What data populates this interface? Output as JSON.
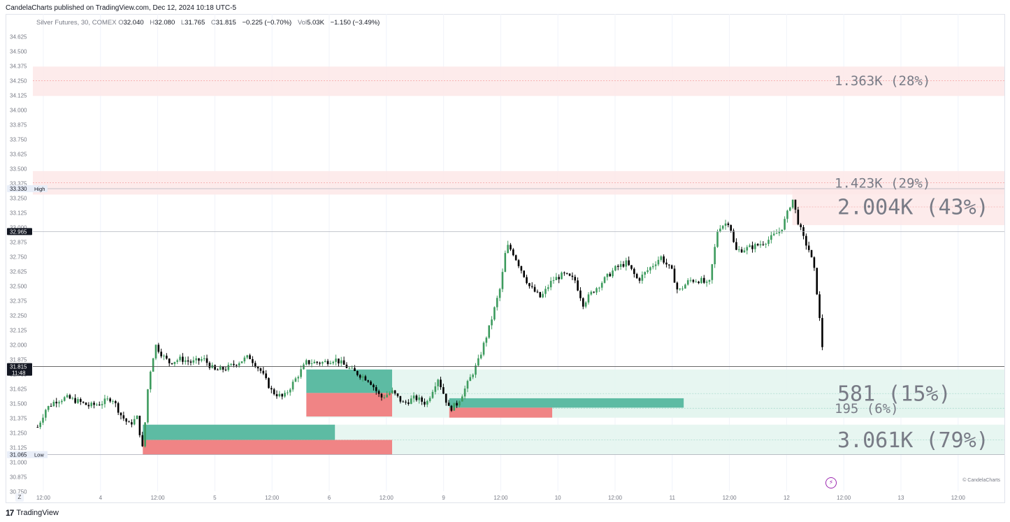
{
  "header": {
    "published_text": "CandelaCharts published on TradingView.com, Dec 12, 2024 10:18 UTC-5"
  },
  "legend": {
    "symbol": "Silver Futures, 30, COMEX",
    "open_key": "O",
    "open": "32.040",
    "high_key": "H",
    "high": "32.080",
    "low_key": "L",
    "low": "31.765",
    "close_key": "C",
    "close": "31.815",
    "change": "−0.225 (−0.70%)",
    "vol_key": "Vol",
    "vol": "5.03K",
    "vol_change": "−1.150 (−3.49%)"
  },
  "footer": {
    "brand": "TradingView",
    "watermark": "© CandelaCharts",
    "z_button": "Z"
  },
  "colors": {
    "up": "#26a69a",
    "down": "#ef5350",
    "candle_up": "#3d9b5e",
    "candle_down": "#000000",
    "zone_red": "#fde8e8",
    "zone_green": "#e3f4ef",
    "text_gray": "#787b86"
  },
  "chart_data": {
    "type": "candlestick",
    "title": "Silver Futures, 30, COMEX",
    "ylim": [
      30.75,
      34.72
    ],
    "y_ticks": [
      "34.625",
      "34.500",
      "34.375",
      "34.250",
      "34.125",
      "34.000",
      "33.875",
      "33.750",
      "33.625",
      "33.500",
      "33.375",
      "33.250",
      "33.125",
      "33.000",
      "32.875",
      "32.750",
      "32.625",
      "32.500",
      "32.375",
      "32.250",
      "32.125",
      "32.000",
      "31.875",
      "31.750",
      "31.625",
      "31.500",
      "31.375",
      "31.250",
      "31.125",
      "31.000",
      "30.875",
      "30.750"
    ],
    "x_ticks": [
      {
        "label": "12:00",
        "pos": 0.0
      },
      {
        "label": "4",
        "pos": 0.5
      },
      {
        "label": "12:00",
        "pos": 1.0
      },
      {
        "label": "5",
        "pos": 1.5
      },
      {
        "label": "12:00",
        "pos": 2.0
      },
      {
        "label": "6",
        "pos": 2.5
      },
      {
        "label": "12:00",
        "pos": 3.0
      },
      {
        "label": "9",
        "pos": 3.5
      },
      {
        "label": "12:00",
        "pos": 4.0
      },
      {
        "label": "10",
        "pos": 4.5
      },
      {
        "label": "12:00",
        "pos": 5.0
      },
      {
        "label": "11",
        "pos": 5.5
      },
      {
        "label": "12:00",
        "pos": 6.0
      },
      {
        "label": "12",
        "pos": 6.5
      },
      {
        "label": "12:00",
        "pos": 7.0
      },
      {
        "label": "13",
        "pos": 7.5
      },
      {
        "label": "12:00",
        "pos": 8.0
      }
    ],
    "price_labels": [
      {
        "value": 33.33,
        "label": "33.330",
        "tag": "High"
      },
      {
        "value": 32.965,
        "label": "32.965",
        "tag": ""
      },
      {
        "value": 31.815,
        "label": "31.815",
        "tag": "11:48"
      },
      {
        "value": 31.065,
        "label": "31.065",
        "tag": "Low"
      }
    ],
    "series_path": [
      [
        -0.05,
        31.3
      ],
      [
        0.02,
        31.45
      ],
      [
        0.1,
        31.52
      ],
      [
        0.2,
        31.55
      ],
      [
        0.3,
        31.52
      ],
      [
        0.4,
        31.48
      ],
      [
        0.5,
        31.5
      ],
      [
        0.6,
        31.55
      ],
      [
        0.68,
        31.4
      ],
      [
        0.75,
        31.32
      ],
      [
        0.82,
        31.38
      ],
      [
        0.87,
        31.1
      ],
      [
        0.92,
        31.7
      ],
      [
        0.98,
        32.0
      ],
      [
        1.05,
        31.9
      ],
      [
        1.1,
        31.85
      ],
      [
        1.2,
        31.88
      ],
      [
        1.3,
        31.85
      ],
      [
        1.4,
        31.88
      ],
      [
        1.5,
        31.78
      ],
      [
        1.6,
        31.8
      ],
      [
        1.7,
        31.85
      ],
      [
        1.8,
        31.9
      ],
      [
        1.9,
        31.78
      ],
      [
        2.0,
        31.6
      ],
      [
        2.1,
        31.55
      ],
      [
        2.2,
        31.7
      ],
      [
        2.3,
        31.85
      ],
      [
        2.45,
        31.85
      ],
      [
        2.55,
        31.88
      ],
      [
        2.7,
        31.78
      ],
      [
        2.85,
        31.7
      ],
      [
        2.95,
        31.55
      ],
      [
        3.05,
        31.6
      ],
      [
        3.15,
        31.5
      ],
      [
        3.25,
        31.55
      ],
      [
        3.35,
        31.5
      ],
      [
        3.45,
        31.72
      ],
      [
        3.55,
        31.45
      ],
      [
        3.62,
        31.5
      ],
      [
        3.7,
        31.65
      ],
      [
        3.8,
        31.85
      ],
      [
        3.9,
        32.15
      ],
      [
        4.0,
        32.5
      ],
      [
        4.05,
        32.85
      ],
      [
        4.1,
        32.8
      ],
      [
        4.15,
        32.7
      ],
      [
        4.25,
        32.5
      ],
      [
        4.35,
        32.4
      ],
      [
        4.45,
        32.55
      ],
      [
        4.55,
        32.6
      ],
      [
        4.65,
        32.55
      ],
      [
        4.72,
        32.35
      ],
      [
        4.8,
        32.45
      ],
      [
        4.9,
        32.55
      ],
      [
        5.0,
        32.65
      ],
      [
        5.1,
        32.7
      ],
      [
        5.2,
        32.55
      ],
      [
        5.3,
        32.65
      ],
      [
        5.4,
        32.75
      ],
      [
        5.5,
        32.62
      ],
      [
        5.55,
        32.45
      ],
      [
        5.65,
        32.55
      ],
      [
        5.75,
        32.55
      ],
      [
        5.82,
        32.5
      ],
      [
        5.9,
        33.0
      ],
      [
        6.0,
        33.05
      ],
      [
        6.05,
        32.8
      ],
      [
        6.15,
        32.82
      ],
      [
        6.25,
        32.85
      ],
      [
        6.35,
        32.9
      ],
      [
        6.45,
        32.98
      ],
      [
        6.5,
        33.1
      ],
      [
        6.55,
        33.25
      ],
      [
        6.6,
        33.05
      ],
      [
        6.65,
        32.9
      ],
      [
        6.7,
        32.8
      ],
      [
        6.75,
        32.6
      ],
      [
        6.8,
        32.1
      ],
      [
        6.83,
        31.82
      ]
    ],
    "zones": [
      {
        "kind": "red",
        "y0": 34.12,
        "y1": 34.37,
        "x0": -0.1,
        "x1": 8.5,
        "label": "1.363K (28%)",
        "big": false,
        "mid": 34.25
      },
      {
        "kind": "red",
        "y0": 33.28,
        "y1": 33.48,
        "x0": -0.1,
        "x1": 8.5,
        "label": "1.423K (29%)",
        "big": false,
        "mid": 33.38
      },
      {
        "kind": "red",
        "y0": 33.02,
        "y1": 33.33,
        "x0": 6.55,
        "x1": 8.5,
        "label": "2.004K (43%)",
        "big": true,
        "mid": 33.175
      },
      {
        "kind": "green",
        "y0": 31.38,
        "y1": 31.79,
        "x0": 2.3,
        "x1": 8.5,
        "label": "581 (15%)",
        "big": true,
        "mid": 31.585
      },
      {
        "kind": "green",
        "y0": 31.38,
        "y1": 31.545,
        "x0": 3.55,
        "x1": 8.5,
        "label": "195 (6%)",
        "big": false,
        "mid": 31.46
      },
      {
        "kind": "green",
        "y0": 31.065,
        "y1": 31.32,
        "x0": 0.87,
        "x1": 8.5,
        "label": "3.061K (79%)",
        "big": true,
        "mid": 31.19
      }
    ],
    "volume_bars": [
      {
        "x0": 2.3,
        "x1": 3.05,
        "y0": 31.59,
        "y1": 31.79,
        "color": "up"
      },
      {
        "x0": 2.3,
        "x1": 3.05,
        "y0": 31.39,
        "y1": 31.59,
        "color": "down"
      },
      {
        "x0": 3.55,
        "x1": 5.6,
        "y0": 31.465,
        "y1": 31.545,
        "color": "up"
      },
      {
        "x0": 3.55,
        "x1": 4.45,
        "y0": 31.38,
        "y1": 31.465,
        "color": "down"
      },
      {
        "x0": 0.87,
        "x1": 2.55,
        "y0": 31.19,
        "y1": 31.32,
        "color": "up"
      },
      {
        "x0": 0.87,
        "x1": 3.05,
        "y0": 31.065,
        "y1": 31.19,
        "color": "down"
      }
    ]
  }
}
